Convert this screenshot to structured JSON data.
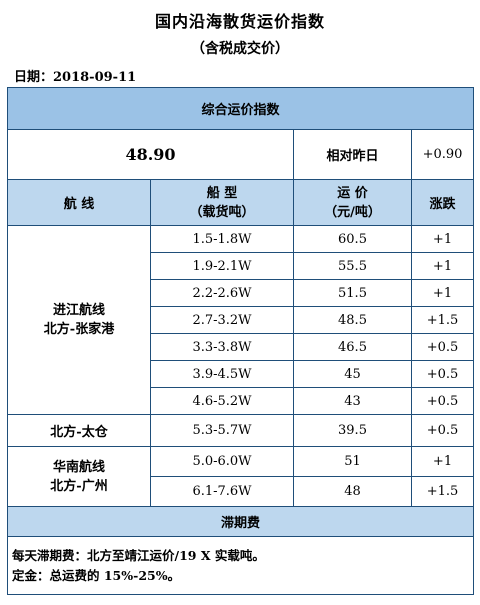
{
  "title": "国内沿海散货运价指数",
  "subtitle": "（含税成交价）",
  "date_label": "日期：2018-09-11",
  "index_header": "综合运价指数",
  "index_value": "48.90",
  "change_label": "相对昨日",
  "change_value": "+0.90",
  "columns": {
    "route": "航 线",
    "ship_type": "船 型",
    "ship_type_unit": "（载货吨）",
    "freight": "运 价",
    "freight_unit": "（元/吨）",
    "change": "涨跌"
  },
  "groups": [
    {
      "route_line1": "进江航线",
      "route_line2": "北方-张家港",
      "rows": [
        {
          "type": "1.5-1.8W",
          "price": "60.5",
          "change": "+1"
        },
        {
          "type": "1.9-2.1W",
          "price": "55.5",
          "change": "+1"
        },
        {
          "type": "2.2-2.6W",
          "price": "51.5",
          "change": "+1"
        },
        {
          "type": "2.7-3.2W",
          "price": "48.5",
          "change": "+1.5"
        },
        {
          "type": "3.3-3.8W",
          "price": "46.5",
          "change": "+0.5"
        },
        {
          "type": "3.9-4.5W",
          "price": "45",
          "change": "+0.5"
        },
        {
          "type": "4.6-5.2W",
          "price": "43",
          "change": "+0.5"
        }
      ]
    },
    {
      "route_line1": "北方-太仓",
      "route_line2": "",
      "rows": [
        {
          "type": "5.3-5.7W",
          "price": "39.5",
          "change": "+0.5"
        }
      ]
    },
    {
      "route_line1": "华南航线",
      "route_line2": "北方-广州",
      "rows": [
        {
          "type": "5.0-6.0W",
          "price": "51",
          "change": "+1"
        },
        {
          "type": "6.1-7.6W",
          "price": "48",
          "change": "+1.5"
        }
      ]
    }
  ],
  "demurrage_header": "滞期费",
  "footer_line1": "每天滞期费：北方至靖江运价/19 X 实载吨。",
  "footer_line2": "定金：总运费的 15%-25%。"
}
